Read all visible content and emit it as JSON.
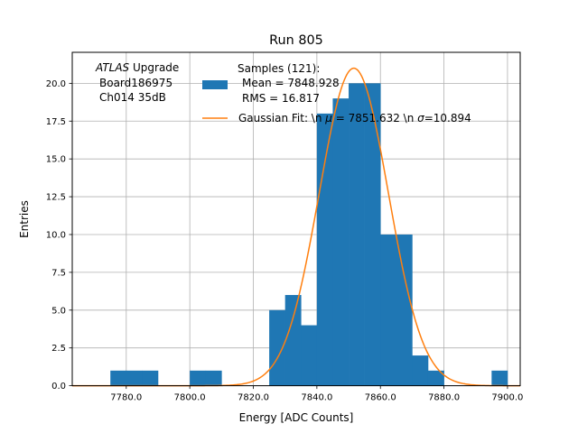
{
  "chart_data": {
    "type": "bar",
    "title": "Run 805",
    "xlabel": "Energy [ADC Counts]",
    "ylabel": "Entries",
    "xlim": [
      7763.0,
      7904.0
    ],
    "ylim": [
      0,
      22.05
    ],
    "grid": true,
    "x_ticks": [
      7780.0,
      7800.0,
      7820.0,
      7840.0,
      7860.0,
      7880.0,
      7900.0
    ],
    "x_tick_labels": [
      "7780.0",
      "7800.0",
      "7820.0",
      "7840.0",
      "7860.0",
      "7880.0",
      "7900.0"
    ],
    "y_ticks": [
      0.0,
      2.5,
      5.0,
      7.5,
      10.0,
      12.5,
      15.0,
      17.5,
      20.0
    ],
    "y_tick_labels": [
      "0.0",
      "2.5",
      "5.0",
      "7.5",
      "10.0",
      "12.5",
      "15.0",
      "17.5",
      "20.0"
    ],
    "annotation": {
      "atlas": "ATLAS",
      "upgrade": " Upgrade",
      "board": "Board186975",
      "channel": "Ch014 35dB"
    },
    "legend": {
      "placement": "top-right",
      "samples_title": "Samples (121):",
      "samples_mean": "Mean = 7848.928",
      "samples_rms": "RMS = 16.817",
      "fit_prefix": "Gaussian Fit: \\n ",
      "fit_mu_symbol": "μ",
      "fit_mu_value": " = 7851.632 \\n ",
      "fit_sigma_symbol": "σ",
      "fit_sigma_value": "=10.894"
    },
    "series": [
      {
        "name": "Samples (121):",
        "kind": "histogram",
        "color": "#1f77b4",
        "bins": [
          {
            "x0": 7775,
            "x1": 7780,
            "count": 1
          },
          {
            "x0": 7780,
            "x1": 7785,
            "count": 1
          },
          {
            "x0": 7785,
            "x1": 7790,
            "count": 1
          },
          {
            "x0": 7800,
            "x1": 7805,
            "count": 1
          },
          {
            "x0": 7805,
            "x1": 7810,
            "count": 1
          },
          {
            "x0": 7825,
            "x1": 7830,
            "count": 5
          },
          {
            "x0": 7830,
            "x1": 7835,
            "count": 6
          },
          {
            "x0": 7835,
            "x1": 7840,
            "count": 4
          },
          {
            "x0": 7840,
            "x1": 7845,
            "count": 18
          },
          {
            "x0": 7845,
            "x1": 7850,
            "count": 19
          },
          {
            "x0": 7850,
            "x1": 7855,
            "count": 20
          },
          {
            "x0": 7855,
            "x1": 7860,
            "count": 20
          },
          {
            "x0": 7860,
            "x1": 7865,
            "count": 10
          },
          {
            "x0": 7865,
            "x1": 7870,
            "count": 10
          },
          {
            "x0": 7870,
            "x1": 7875,
            "count": 2
          },
          {
            "x0": 7875,
            "x1": 7880,
            "count": 1
          },
          {
            "x0": 7895,
            "x1": 7900,
            "count": 1
          }
        ]
      },
      {
        "name": "Gaussian Fit",
        "kind": "line",
        "color": "#ff7f0e",
        "mu": 7851.632,
        "sigma": 10.894,
        "amplitude": 21.0,
        "x_range": [
          7763.0,
          7904.0
        ]
      }
    ]
  }
}
